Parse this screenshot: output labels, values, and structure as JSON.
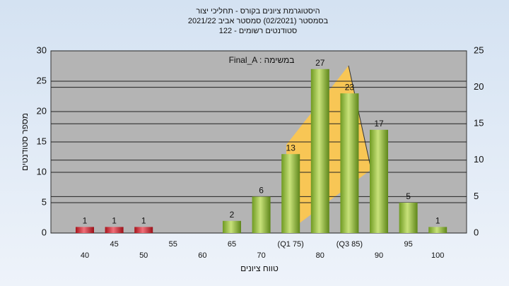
{
  "chart_data": {
    "type": "bar",
    "title": "היסטוגרמת ציונים בקורס - תחליכי יצור",
    "subtitle": "בסמסטר  (02/2021)  סמסטר אביב 2021/22",
    "subtitle2": "סטודנטים רשומים - 122",
    "annotation": "Final_A : במשימה",
    "x_label": "טווח ציונים",
    "y_label": "מספר סטודנטים",
    "categories": [
      "40",
      "45",
      "50",
      "55",
      "60",
      "65",
      "70",
      "(Q1 75)",
      "80",
      "(Q3 85)",
      "90",
      "95",
      "100"
    ],
    "values": [
      1,
      1,
      1,
      0,
      0,
      2,
      6,
      13,
      27,
      23,
      17,
      5,
      1
    ],
    "colors": [
      "#d8313a",
      "#d8313a",
      "#d8313a",
      "#8fbc3c",
      "#8fbc3c",
      "#8fbc3c",
      "#8fbc3c",
      "#8fbc3c",
      "#8fbc3c",
      "#8fbc3c",
      "#8fbc3c",
      "#8fbc3c",
      "#8fbc3c"
    ],
    "ylim": [
      0,
      30
    ],
    "yticks": [
      0,
      5,
      10,
      15,
      20,
      25,
      30
    ],
    "y2lim": [
      0,
      25
    ],
    "y2ticks": [
      0,
      5,
      10,
      15,
      20,
      25
    ],
    "grid": true
  }
}
